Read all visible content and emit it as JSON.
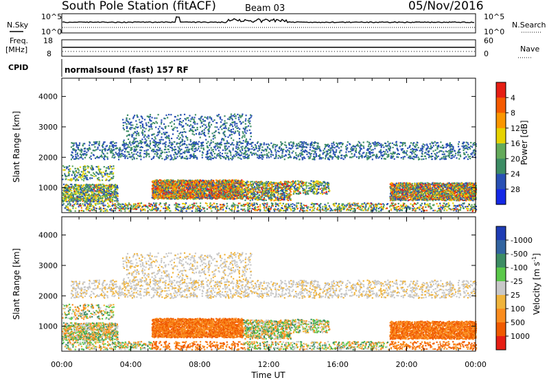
{
  "header": {
    "station_title": "South Pole Station (fitACF)",
    "beam": "Beam 03",
    "date": "05/Nov/2016"
  },
  "top_panels": {
    "nsky_label": "N.Sky",
    "nsky_ticks": [
      "10^5",
      "10^0"
    ],
    "nsearch_label": "N.Search",
    "nsearch_ticks": [
      "10^5",
      "10^0"
    ],
    "freq_label_1": "Freq.",
    "freq_label_2": "[MHz]",
    "freq_ticks": [
      "18",
      "8"
    ],
    "nave_label": "Nave",
    "nave_ticks": [
      "60",
      "0"
    ],
    "cpid_label": "CPID",
    "cpid_text": "normalsound (fast) 157 RF"
  },
  "chart_data": [
    {
      "type": "heatmap",
      "name": "Power",
      "ylabel": "Slant Range [km]",
      "yticks": [
        1000,
        2000,
        3000,
        4000
      ],
      "ylim": [
        180,
        4600
      ],
      "xlim": [
        0,
        24
      ],
      "colorbar_label": "Power [dB]",
      "colorbar_ticks": [
        "4",
        "8",
        "12",
        "16",
        "20",
        "24",
        "28"
      ],
      "colors": [
        "#1428e6",
        "#2850b4",
        "#3c8c64",
        "#64aa5a",
        "#e6d200",
        "#fa9600",
        "#f55a00",
        "#e61e14"
      ]
    },
    {
      "type": "heatmap",
      "name": "Velocity",
      "ylabel": "Slant Range [km]",
      "yticks": [
        1000,
        2000,
        3000,
        4000
      ],
      "ylim": [
        180,
        4600
      ],
      "xlim": [
        0,
        24
      ],
      "xlabel": "Time UT",
      "xticks": [
        "00:00",
        "04:00",
        "08:00",
        "12:00",
        "16:00",
        "20:00",
        "00:00"
      ],
      "colorbar_label": "Velocity [m s^-1]",
      "colorbar_ticks": [
        "1000",
        "500",
        "100",
        "25",
        "-25",
        "-100",
        "-500",
        "-1000"
      ],
      "colors": [
        "#1e3cb4",
        "#3264a0",
        "#3c8c64",
        "#5ac84a",
        "#c8c8c8",
        "#f0b43c",
        "#fa8c1e",
        "#f05a00",
        "#e61e14"
      ]
    }
  ]
}
